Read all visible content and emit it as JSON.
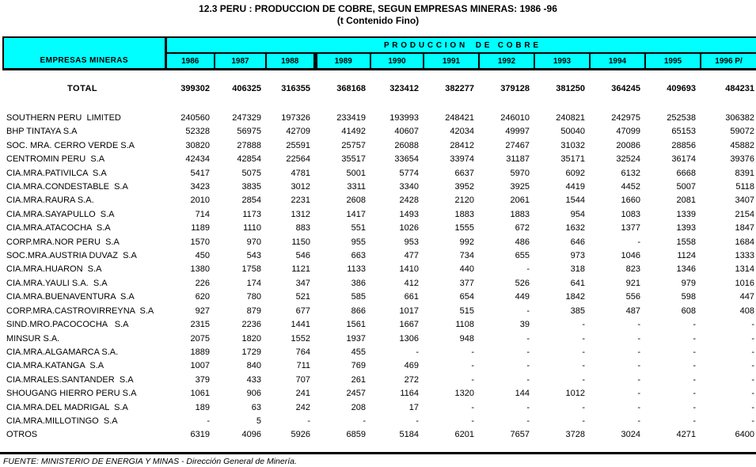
{
  "title": "12.3 PERU : PRODUCCION DE COBRE, SEGUN EMPRESAS MINERAS: 1986 -96",
  "subtitle": "(t Contenido Fino)",
  "colors": {
    "header_bg": "#00ffff",
    "border": "#000000",
    "text": "#000000",
    "background": "#ffffff"
  },
  "header": {
    "empresas_label": "EMPRESAS MINERAS",
    "produccion_label": "P R O D U C C I O N    D E   C O B R E",
    "years": [
      "1986",
      "1987",
      "1988",
      "1989",
      "1990",
      "1991",
      "1992",
      "1993",
      "1994",
      "1995",
      "1996 P/"
    ]
  },
  "table": {
    "total_row": {
      "name": "TOTAL",
      "values": [
        "399302",
        "406325",
        "316355",
        "368168",
        "323412",
        "382277",
        "379128",
        "381250",
        "364245",
        "409693",
        "484231"
      ]
    },
    "rows": [
      {
        "name": "SOUTHERN PERU  LIMITED",
        "values": [
          "240560",
          "247329",
          "197326",
          "233419",
          "193993",
          "248421",
          "246010",
          "240821",
          "242975",
          "252538",
          "306382"
        ]
      },
      {
        "name": "BHP TINTAYA S.A",
        "values": [
          "52328",
          "56975",
          "42709",
          "41492",
          "40607",
          "42034",
          "49997",
          "50040",
          "47099",
          "65153",
          "59072"
        ]
      },
      {
        "name": "SOC. MRA. CERRO VERDE S.A",
        "values": [
          "30820",
          "27888",
          "25591",
          "25757",
          "26088",
          "28412",
          "27467",
          "31032",
          "20086",
          "28856",
          "45882"
        ]
      },
      {
        "name": "CENTROMIN PERU  S.A",
        "values": [
          "42434",
          "42854",
          "22564",
          "35517",
          "33654",
          "33974",
          "31187",
          "35171",
          "32524",
          "36174",
          "39376"
        ]
      },
      {
        "name": "CIA.MRA.PATIVILCA  S.A",
        "values": [
          "5417",
          "5075",
          "4781",
          "5001",
          "5774",
          "6637",
          "5970",
          "6092",
          "6132",
          "6668",
          "8391"
        ]
      },
      {
        "name": "CIA.MRA.CONDESTABLE  S.A",
        "values": [
          "3423",
          "3835",
          "3012",
          "3311",
          "3340",
          "3952",
          "3925",
          "4419",
          "4452",
          "5007",
          "5118"
        ]
      },
      {
        "name": "CIA.MRA.RAURA S.A.",
        "values": [
          "2010",
          "2854",
          "2231",
          "2608",
          "2428",
          "2120",
          "2061",
          "1544",
          "1660",
          "2081",
          "3407"
        ]
      },
      {
        "name": "CIA.MRA.SAYAPULLO  S.A",
        "values": [
          "714",
          "1173",
          "1312",
          "1417",
          "1493",
          "1883",
          "1883",
          "954",
          "1083",
          "1339",
          "2154"
        ]
      },
      {
        "name": "CIA.MRA.ATACOCHA  S.A",
        "values": [
          "1189",
          "1110",
          "883",
          "551",
          "1026",
          "1555",
          "672",
          "1632",
          "1377",
          "1393",
          "1847"
        ]
      },
      {
        "name": "CORP.MRA.NOR PERU  S.A",
        "values": [
          "1570",
          "970",
          "1150",
          "955",
          "953",
          "992",
          "486",
          "646",
          "-",
          "1558",
          "1684"
        ]
      },
      {
        "name": "SOC.MRA.AUSTRIA DUVAZ  S.A",
        "values": [
          "450",
          "543",
          "546",
          "663",
          "477",
          "734",
          "655",
          "973",
          "1046",
          "1124",
          "1333"
        ]
      },
      {
        "name": "CIA.MRA.HUARON  S.A",
        "values": [
          "1380",
          "1758",
          "1121",
          "1133",
          "1410",
          "440",
          "-",
          "318",
          "823",
          "1346",
          "1314"
        ]
      },
      {
        "name": "CIA.MRA.YAULI S.A.  S.A",
        "values": [
          "226",
          "174",
          "347",
          "386",
          "412",
          "377",
          "526",
          "641",
          "921",
          "979",
          "1016"
        ]
      },
      {
        "name": "CIA.MRA.BUENAVENTURA  S.A",
        "values": [
          "620",
          "780",
          "521",
          "585",
          "661",
          "654",
          "449",
          "1842",
          "556",
          "598",
          "447"
        ]
      },
      {
        "name": "CORP.MRA.CASTROVIRREYNA  S.A",
        "values": [
          "927",
          "879",
          "677",
          "866",
          "1017",
          "515",
          "-",
          "385",
          "487",
          "608",
          "408"
        ]
      },
      {
        "name": "SIND.MRO.PACOCOCHA   S.A",
        "values": [
          "2315",
          "2236",
          "1441",
          "1561",
          "1667",
          "1108",
          "39",
          "-",
          "-",
          "-",
          "-"
        ]
      },
      {
        "name": "MINSUR S.A.",
        "values": [
          "2075",
          "1820",
          "1552",
          "1937",
          "1306",
          "948",
          "-",
          "-",
          "-",
          "-",
          "-"
        ]
      },
      {
        "name": "CIA.MRA.ALGAMARCA S.A.",
        "values": [
          "1889",
          "1729",
          "764",
          "455",
          "-",
          "-",
          "-",
          "-",
          "-",
          "-",
          "-"
        ]
      },
      {
        "name": "CIA.MRA.KATANGA  S.A",
        "values": [
          "1007",
          "840",
          "711",
          "769",
          "469",
          "-",
          "-",
          "-",
          "-",
          "-",
          "-"
        ]
      },
      {
        "name": "CIA.MRALES.SANTANDER  S.A",
        "values": [
          "379",
          "433",
          "707",
          "261",
          "272",
          "-",
          "-",
          "-",
          "-",
          "-",
          "-"
        ]
      },
      {
        "name": "SHOUGANG HIERRO PERU S.A",
        "values": [
          "1061",
          "906",
          "241",
          "2457",
          "1164",
          "1320",
          "144",
          "1012",
          "-",
          "-",
          "-"
        ]
      },
      {
        "name": "CIA.MRA.DEL MADRIGAL  S.A",
        "values": [
          "189",
          "63",
          "242",
          "208",
          "17",
          "-",
          "-",
          "-",
          "-",
          "-",
          "-"
        ]
      },
      {
        "name": "CIA.MRA.MILLOTINGO  S.A",
        "values": [
          "-",
          "5",
          "-",
          "-",
          "-",
          "-",
          "-",
          "-",
          "-",
          "-",
          "-"
        ]
      },
      {
        "name": "OTROS",
        "values": [
          "6319",
          "4096",
          "5926",
          "6859",
          "5184",
          "6201",
          "7657",
          "3728",
          "3024",
          "4271",
          "6400"
        ]
      }
    ]
  },
  "footer": {
    "source": "FUENTE: MINISTERIO DE ENERGIA Y MINAS - Dirección General de Minería."
  }
}
